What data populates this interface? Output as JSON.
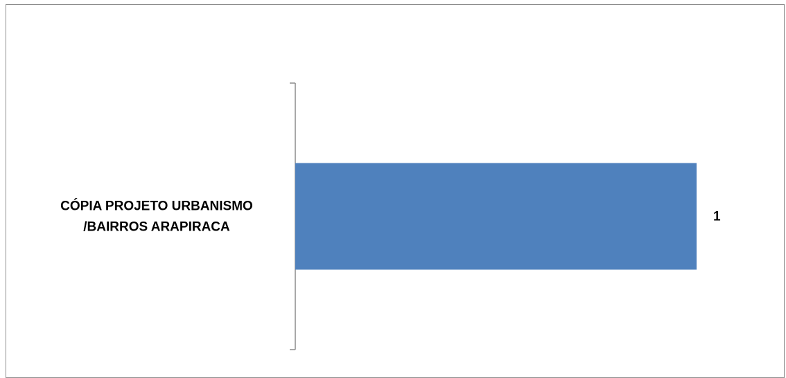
{
  "chart_data": {
    "type": "bar",
    "orientation": "horizontal",
    "categories": [
      "CÓPIA PROJETO URBANISMO /BAIRROS ARAPIRACA"
    ],
    "category_label_lines": [
      [
        "CÓPIA PROJETO URBANISMO",
        "/BAIRROS ARAPIRACA"
      ]
    ],
    "values": [
      1
    ],
    "data_labels": [
      "1"
    ],
    "xlim": [
      0,
      1
    ],
    "grid": false,
    "legend": "none",
    "bar_color": "#4f81bd",
    "axis_color": "#8c8c8c"
  }
}
